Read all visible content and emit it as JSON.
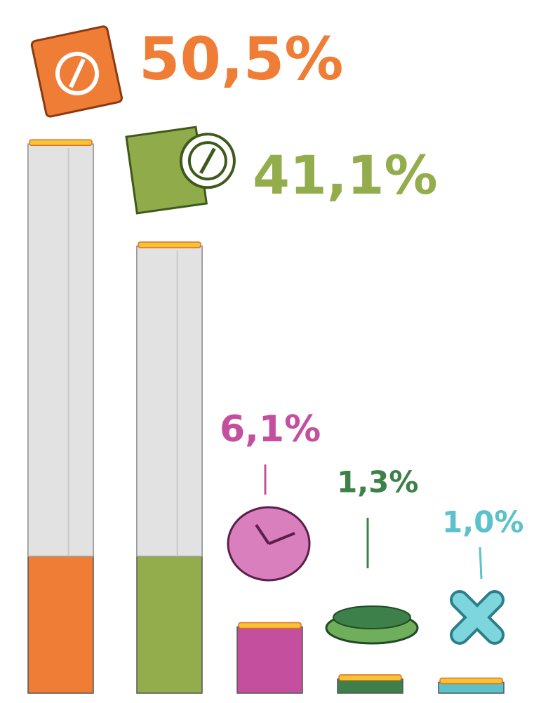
{
  "chart_data": {
    "type": "bar",
    "categories": [
      null,
      null,
      null,
      null,
      null
    ],
    "values": [
      50.5,
      41.1,
      6.1,
      1.3,
      1.0
    ],
    "value_labels": [
      "50,5%",
      "41,1%",
      "6,1%",
      "1,3%",
      "1,0%"
    ],
    "colors": [
      "#ef7d35",
      "#93ad4c",
      "#c44f9f",
      "#3e8049",
      "#5bc2cc"
    ]
  }
}
